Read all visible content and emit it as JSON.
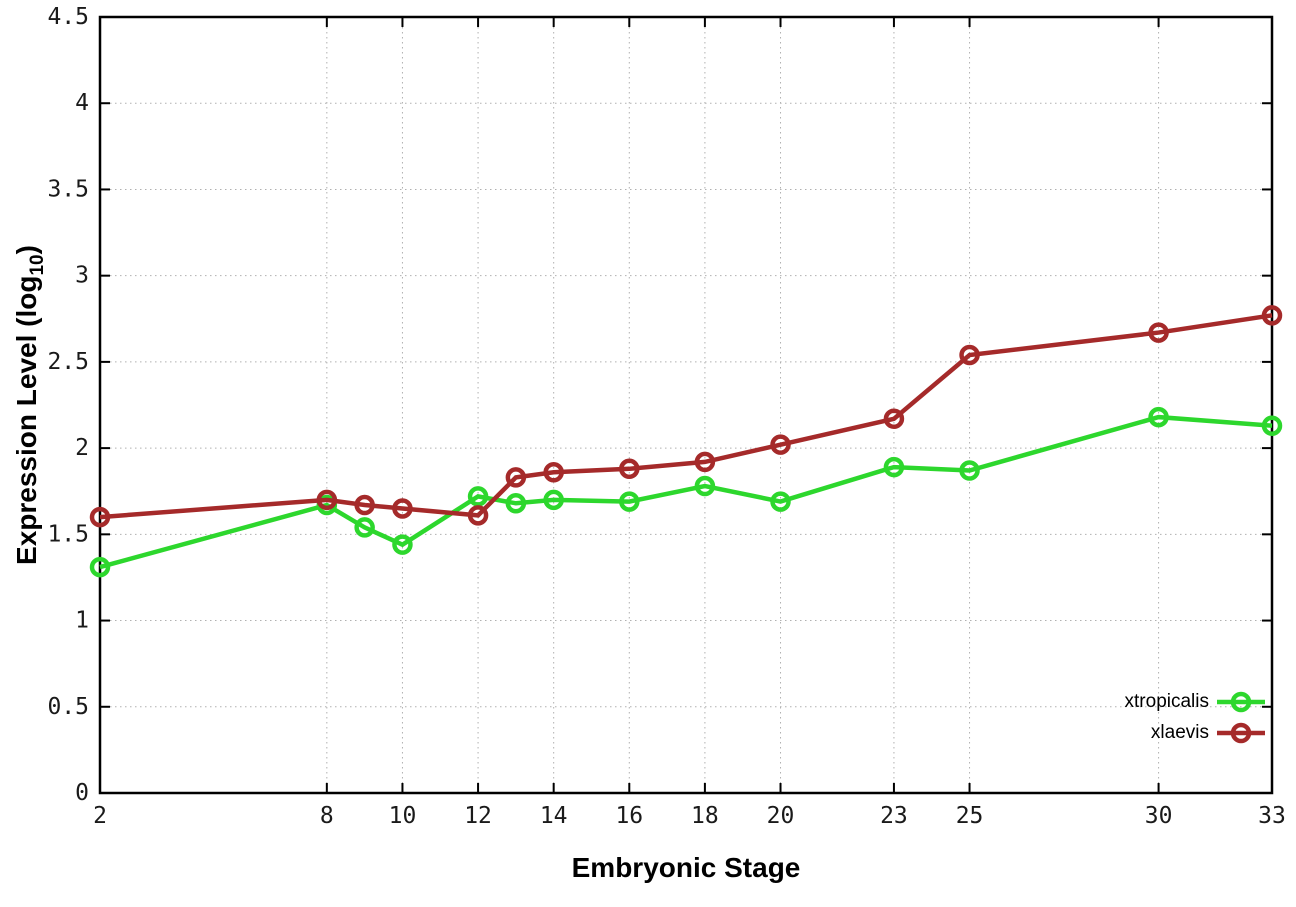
{
  "labels": {
    "xlabel": "Embryonic Stage",
    "ylabel_main": "Expression Level (log",
    "ylabel_sub": "10",
    "ylabel_close": ")"
  },
  "chart_data": {
    "type": "line",
    "title": "",
    "xlabel": "Embryonic Stage",
    "ylabel": "Expression Level (log10)",
    "xlim": [
      2,
      33
    ],
    "ylim": [
      0,
      4.5
    ],
    "x_ticks": [
      2,
      8,
      10,
      12,
      14,
      16,
      18,
      20,
      23,
      25,
      30,
      33
    ],
    "y_ticks": [
      0,
      0.5,
      1,
      1.5,
      2,
      2.5,
      3,
      3.5,
      4,
      4.5
    ],
    "grid": true,
    "legend_position": "inside-bottom-right",
    "x": [
      2,
      8,
      9,
      10,
      12,
      13,
      14,
      16,
      18,
      20,
      23,
      25,
      30,
      33
    ],
    "series": [
      {
        "name": "xtropicalis",
        "color": "#2dd72d",
        "marker": "open-circle",
        "values": [
          1.31,
          1.67,
          1.54,
          1.44,
          1.72,
          1.68,
          1.7,
          1.69,
          1.78,
          1.69,
          1.89,
          1.87,
          2.18,
          2.13
        ]
      },
      {
        "name": "xlaevis",
        "color": "#a52a2a",
        "marker": "open-circle",
        "values": [
          1.6,
          1.7,
          1.67,
          1.65,
          1.61,
          1.83,
          1.86,
          1.88,
          1.92,
          2.02,
          2.17,
          2.54,
          2.67,
          2.77
        ]
      }
    ],
    "style": {
      "grid_color": "#b0b0b0",
      "axis_color": "#000000",
      "tick_label_color": "#1a1a1a"
    }
  }
}
